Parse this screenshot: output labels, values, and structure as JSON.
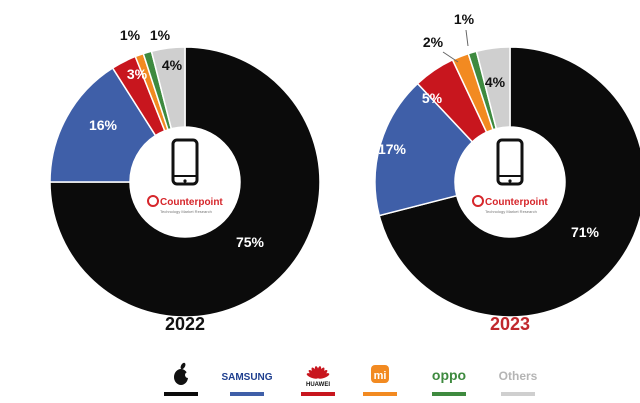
{
  "chart_data": [
    {
      "type": "pie",
      "title": "2022",
      "title_color": "#111111",
      "categories": [
        "Apple",
        "Samsung",
        "Huawei",
        "Xiaomi",
        "Oppo",
        "Others"
      ],
      "values": [
        75,
        16,
        3,
        1,
        1,
        4
      ],
      "labels": [
        "75%",
        "16%",
        "3%",
        "",
        "1%",
        "4%"
      ],
      "extra_labels": [
        "1%"
      ]
    },
    {
      "type": "pie",
      "title": "2023",
      "title_color": "#c0282d",
      "categories": [
        "Apple",
        "Samsung",
        "Huawei",
        "Xiaomi",
        "Oppo",
        "Others"
      ],
      "values": [
        71,
        17,
        5,
        2,
        1,
        4
      ],
      "labels": [
        "71%",
        "17%",
        "5%",
        "2%",
        "1%",
        "4%"
      ]
    }
  ],
  "colors": {
    "Apple": "#0b0b0b",
    "Samsung": "#3f5fa8",
    "Huawei": "#c8161e",
    "Xiaomi": "#f28a21",
    "Oppo": "#3e8a3f",
    "Others": "#cfcfcf"
  },
  "center": {
    "brand": "Counterpoint",
    "tagline": "Technology Market Research",
    "icon": "smartphone-icon"
  },
  "legend": [
    {
      "key": "Apple",
      "text": "",
      "icon": "apple-icon"
    },
    {
      "key": "Samsung",
      "text": "SAMSUNG"
    },
    {
      "key": "Huawei",
      "text": "HUAWEI",
      "icon": "huawei-icon"
    },
    {
      "key": "Xiaomi",
      "text": "mi",
      "icon": "xiaomi-icon"
    },
    {
      "key": "Oppo",
      "text": "oppo"
    },
    {
      "key": "Others",
      "text": "Others"
    }
  ]
}
